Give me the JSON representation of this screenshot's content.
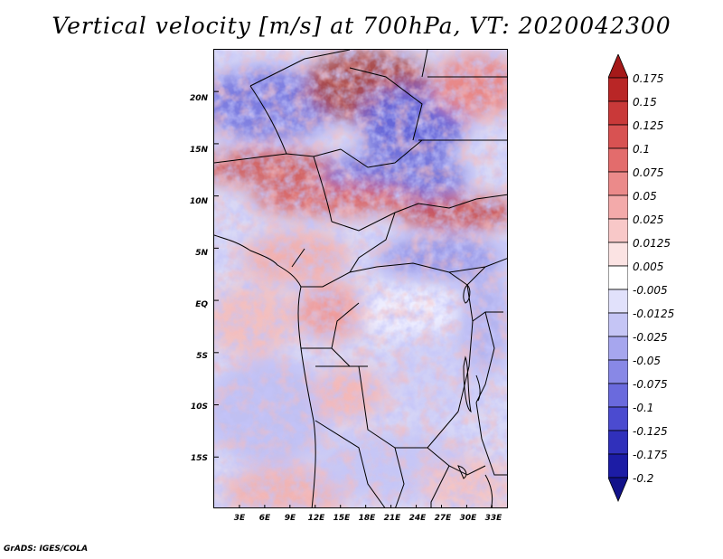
{
  "title": "Vertical velocity [m/s] at 700hPa, VT: 2020042300",
  "credit": "GrADS: IGES/COLA",
  "map": {
    "region": "Central Africa",
    "field": "vertical velocity at 700hPa",
    "units": "m/s",
    "lat_range": [
      -20,
      24
    ],
    "lon_range": [
      0,
      35
    ],
    "lat_ticks": [
      "20N",
      "15N",
      "10N",
      "5N",
      "EQ",
      "5S",
      "10S",
      "15S"
    ],
    "lat_values": [
      20,
      15,
      10,
      5,
      0,
      -5,
      -10,
      -15
    ],
    "lon_ticks": [
      "3E",
      "6E",
      "9E",
      "12E",
      "15E",
      "18E",
      "21E",
      "24E",
      "27E",
      "30E",
      "33E"
    ],
    "lon_values": [
      3,
      6,
      9,
      12,
      15,
      18,
      21,
      24,
      27,
      30,
      33
    ]
  },
  "colorbar": {
    "labels": [
      "0.175",
      "0.15",
      "0.125",
      "0.1",
      "0.075",
      "0.05",
      "0.025",
      "0.0125",
      "0.005",
      "-0.005",
      "-0.0125",
      "-0.025",
      "-0.05",
      "-0.075",
      "-0.1",
      "-0.125",
      "-0.175",
      "-0.2"
    ],
    "colors": [
      "#a51919",
      "#b92626",
      "#c93939",
      "#d85252",
      "#e36c6c",
      "#eb8a8a",
      "#f3aaaa",
      "#f8c8c8",
      "#fbe3e3",
      "#ffffff",
      "#e1e1fb",
      "#c5c5f5",
      "#a6a6ee",
      "#8888e6",
      "#6a6add",
      "#4b4bd0",
      "#3030bb",
      "#1c1ca5",
      "#12128a"
    ]
  }
}
